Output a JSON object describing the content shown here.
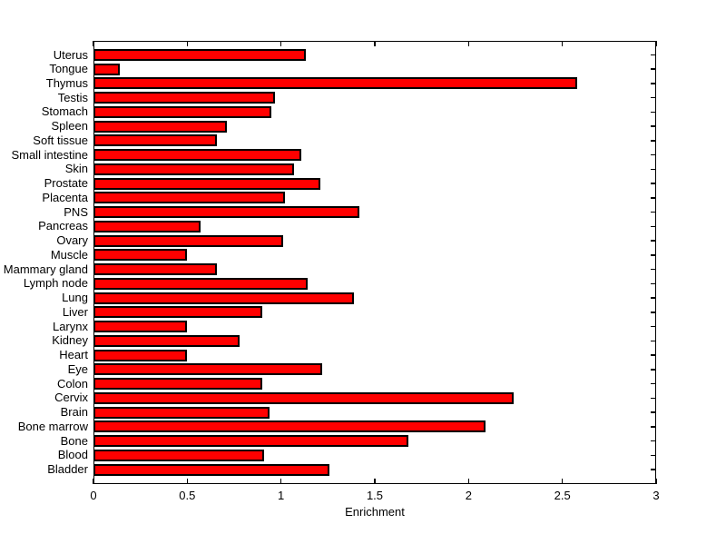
{
  "chart_data": {
    "type": "bar",
    "orientation": "horizontal",
    "title": "",
    "xlabel": "Enrichment",
    "ylabel": "",
    "xlim": [
      0,
      3
    ],
    "xticks": [
      0,
      0.5,
      1,
      1.5,
      2,
      2.5,
      3
    ],
    "xtick_labels": [
      "0",
      "0.5",
      "1",
      "1.5",
      "2",
      "2.5",
      "3"
    ],
    "grid": false,
    "legend_position": "none",
    "bar_color": "#FF0000",
    "bar_edge_color": "#000000",
    "background_color": "#FFFFFF",
    "categories": [
      "Uterus",
      "Tongue",
      "Thymus",
      "Testis",
      "Stomach",
      "Spleen",
      "Soft tissue",
      "Small intestine",
      "Skin",
      "Prostate",
      "Placenta",
      "PNS",
      "Pancreas",
      "Ovary",
      "Muscle",
      "Mammary gland",
      "Lymph node",
      "Lung",
      "Liver",
      "Larynx",
      "Kidney",
      "Heart",
      "Eye",
      "Colon",
      "Cervix",
      "Brain",
      "Bone marrow",
      "Bone",
      "Blood",
      "Bladder"
    ],
    "values": [
      1.13,
      0.14,
      2.58,
      0.97,
      0.95,
      0.71,
      0.66,
      1.11,
      1.07,
      1.21,
      1.02,
      1.42,
      0.57,
      1.01,
      0.5,
      0.66,
      1.14,
      1.39,
      0.9,
      0.5,
      0.78,
      0.5,
      1.22,
      0.9,
      2.24,
      0.94,
      2.09,
      1.68,
      0.91,
      1.26
    ]
  }
}
